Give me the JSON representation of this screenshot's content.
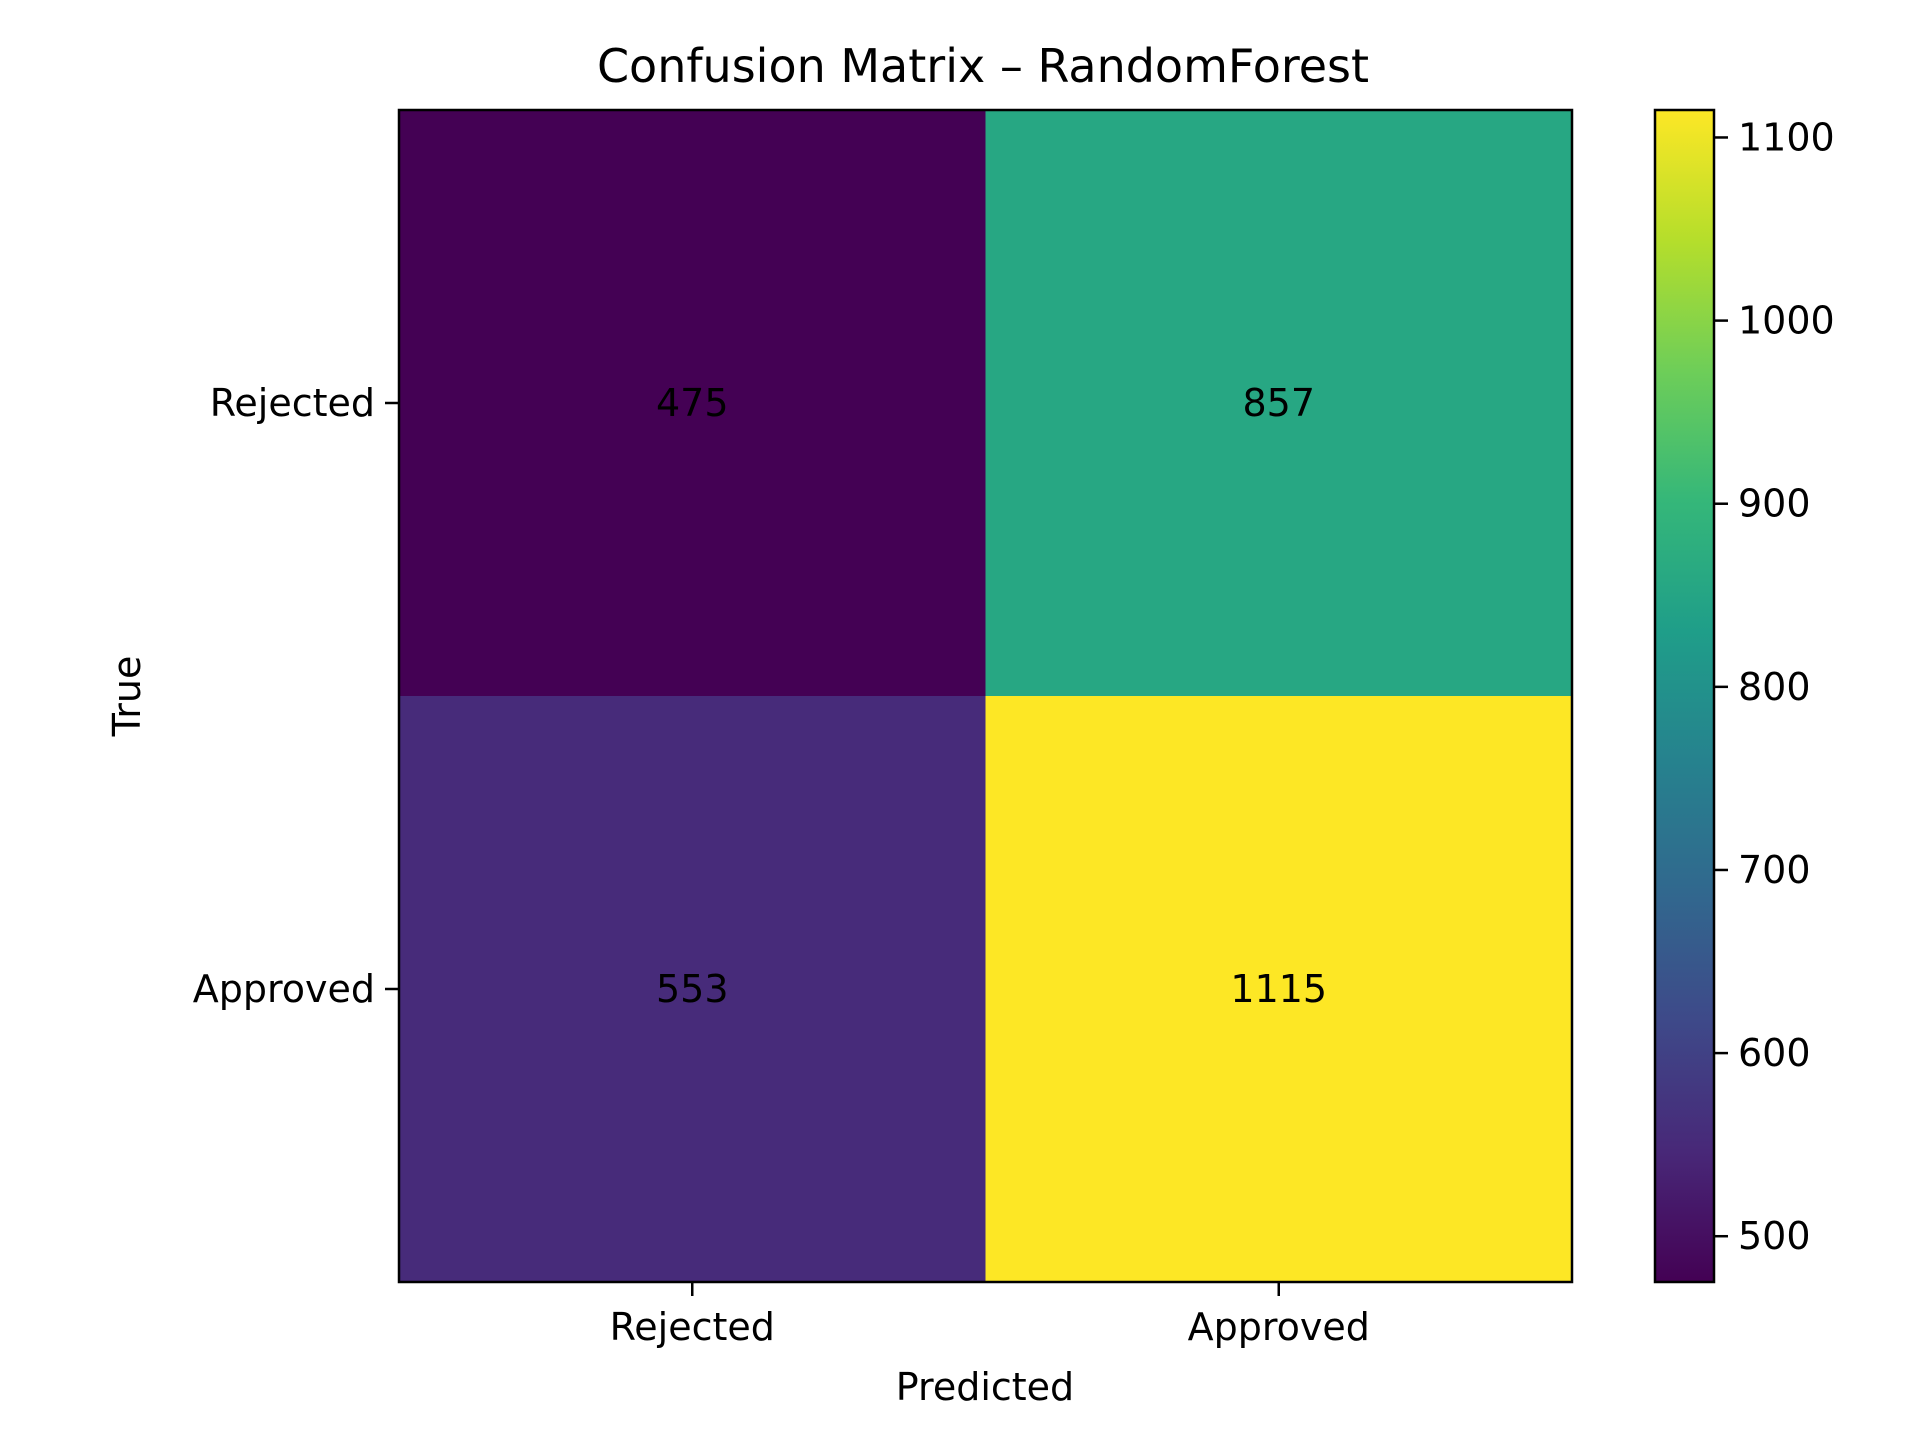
{
  "chart_data": {
    "type": "heatmap",
    "title": "Confusion Matrix – RandomForest",
    "xlabel": "Predicted",
    "ylabel": "True",
    "x_categories": [
      "Rejected",
      "Approved"
    ],
    "y_categories": [
      "Rejected",
      "Approved"
    ],
    "values": [
      [
        475,
        857
      ],
      [
        553,
        1115
      ]
    ],
    "colormap": "viridis",
    "colorbar": {
      "min": 475,
      "max": 1115,
      "ticks": [
        500,
        600,
        700,
        800,
        900,
        1000,
        1100
      ]
    },
    "grid": false
  }
}
